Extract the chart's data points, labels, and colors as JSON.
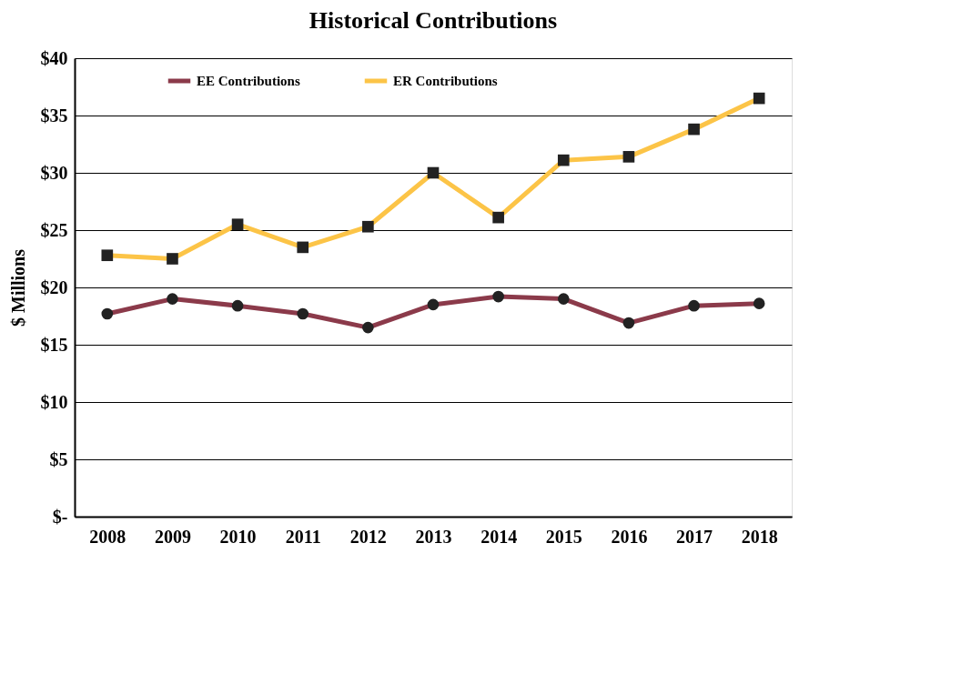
{
  "chart_data": {
    "type": "line",
    "title": "Historical Contributions",
    "ylabel": "$ Millions",
    "categories": [
      "2008",
      "2009",
      "2010",
      "2011",
      "2012",
      "2013",
      "2014",
      "2015",
      "2016",
      "2017",
      "2018"
    ],
    "series": [
      {
        "name": "EE Contributions",
        "color": "#8b3a4a",
        "marker": "circle",
        "values": [
          17.7,
          19.0,
          18.4,
          17.7,
          16.5,
          18.5,
          19.2,
          19.0,
          16.9,
          18.4,
          18.6
        ]
      },
      {
        "name": "ER Contributions",
        "color": "#fcc447",
        "marker": "square",
        "values": [
          22.8,
          22.5,
          25.5,
          23.5,
          25.3,
          30.0,
          26.1,
          31.1,
          31.4,
          33.8,
          36.5
        ]
      }
    ],
    "ylim": [
      0,
      40
    ],
    "yticks": [
      {
        "value": 0,
        "label": "$-"
      },
      {
        "value": 5,
        "label": "$5"
      },
      {
        "value": 10,
        "label": "$10"
      },
      {
        "value": 15,
        "label": "$15"
      },
      {
        "value": 20,
        "label": "$20"
      },
      {
        "value": 25,
        "label": "$25"
      },
      {
        "value": 30,
        "label": "$30"
      },
      {
        "value": 35,
        "label": "$35"
      },
      {
        "value": 40,
        "label": "$40"
      }
    ],
    "grid": "y",
    "legend": "top",
    "line_style": "solid"
  }
}
